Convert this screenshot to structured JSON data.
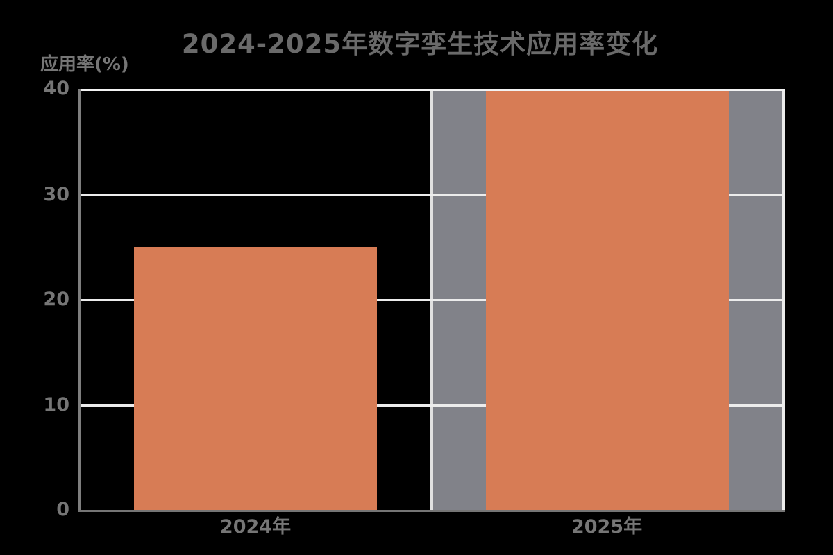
{
  "title": "2024-2025年数字孪生技术应用率变化",
  "y_axis": {
    "label": "应用率(%)",
    "ticks": [
      "40",
      "30",
      "20",
      "10",
      "0"
    ]
  },
  "x_axis": {
    "labels": [
      "2024年",
      "2025年"
    ]
  },
  "chart_data": {
    "type": "bar",
    "title": "2024-2025年数字孪生技术应用率变化",
    "categories": [
      "2024年",
      "2025年"
    ],
    "values": [
      25,
      40
    ],
    "xlabel": "",
    "ylabel": "应用率(%)",
    "ylim": [
      0,
      40
    ],
    "yticks": [
      0,
      10,
      20,
      30,
      40
    ],
    "grid": "horizontal",
    "legend": "none",
    "bar_color": "#d77c55",
    "highlight_band": {
      "region": "right half of plot behind 2025年 bar",
      "color": "#818289",
      "border_color": "#e6e6e6"
    },
    "gridline_color": "#ececec",
    "axis_spine_color": "#7e7e7e",
    "background_color": "#000000",
    "text_color": "#767676"
  }
}
